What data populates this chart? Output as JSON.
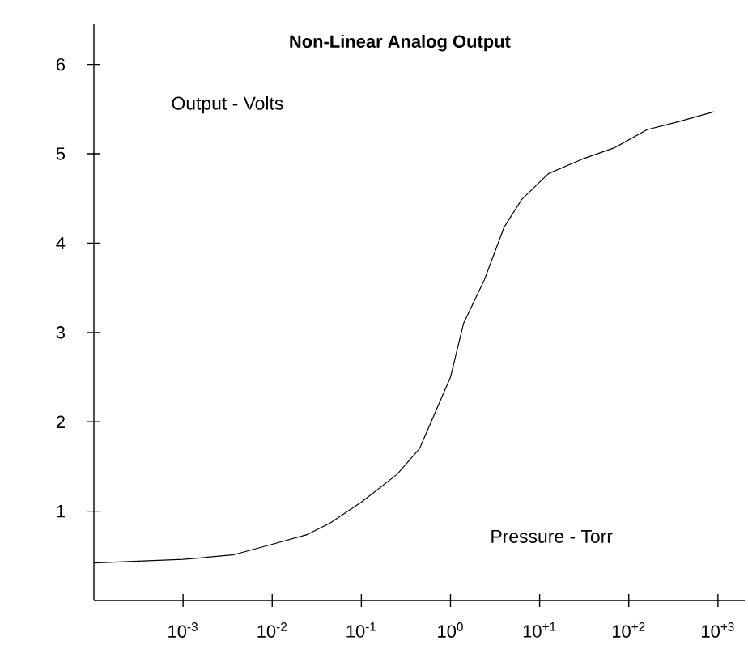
{
  "chart_data": {
    "type": "line",
    "title": "Non-Linear Analog Output",
    "xlabel": "Pressure - Torr",
    "ylabel": "Output - Volts",
    "log": "x",
    "xlim": [
      0.0001,
      2000
    ],
    "ylim": [
      0,
      6.45
    ],
    "xticks": [
      {
        "value": 0.001,
        "label": "10$^{-3}$"
      },
      {
        "value": 0.01,
        "label": "10$^{-2}$"
      },
      {
        "value": 0.1,
        "label": "10$^{-1}$"
      },
      {
        "value": 1,
        "label": "10$^{0}$"
      },
      {
        "value": 10,
        "label": "10$^{+1}$"
      },
      {
        "value": 100,
        "label": "10$^{+2}$"
      },
      {
        "value": 1000,
        "label": "10$^{+3}$"
      }
    ],
    "yticks": [
      1,
      2,
      3,
      4,
      5,
      6
    ],
    "marker": "none",
    "line_style": "solid",
    "series": [
      {
        "color": "#000000",
        "x": [
          0.0001,
          0.001,
          0.0036,
          0.01,
          0.025,
          0.045,
          0.1,
          0.25,
          0.45,
          1,
          1.4,
          2.4,
          4,
          6.3,
          12.6,
          30,
          70,
          160,
          360,
          900
        ],
        "values": [
          0.42,
          0.46,
          0.51,
          0.63,
          0.74,
          0.87,
          1.1,
          1.41,
          1.7,
          2.5,
          3.1,
          3.59,
          4.18,
          4.49,
          4.78,
          4.94,
          5.07,
          5.27,
          5.36,
          5.47
        ]
      }
    ]
  }
}
